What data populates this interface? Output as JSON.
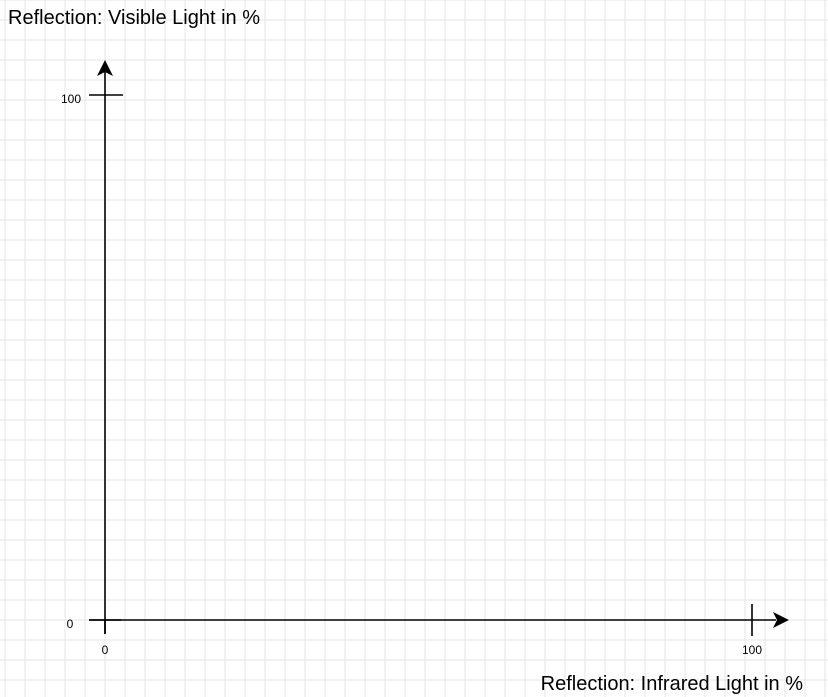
{
  "chart_data": {
    "type": "scatter",
    "title": "",
    "xlabel": "Reflection: Infrared Light in %",
    "ylabel": "Reflection: Visible Light in %",
    "xlim": [
      0,
      100
    ],
    "ylim": [
      0,
      100
    ],
    "x_ticks": [
      "0",
      "100"
    ],
    "y_ticks": [
      "0",
      "100"
    ],
    "grid": true,
    "series": []
  }
}
